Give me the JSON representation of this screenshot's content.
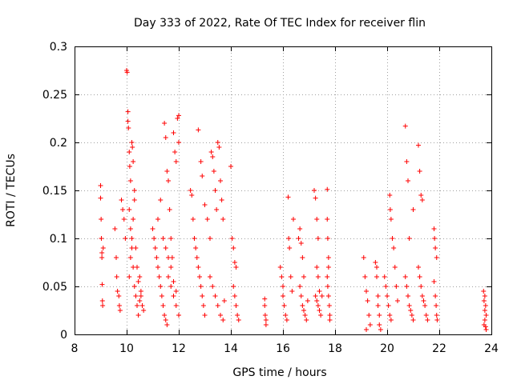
{
  "chart_data": {
    "type": "scatter",
    "title": "Day 333 of 2022, Rate Of TEC Index for receiver flin",
    "xlabel": "GPS time / hours",
    "ylabel": "ROTI / TECUs",
    "xlim": [
      8,
      24
    ],
    "ylim": [
      0,
      0.3
    ],
    "xticks": [
      "8",
      "10",
      "12",
      "14",
      "16",
      "18",
      "20",
      "22",
      "24"
    ],
    "yticks": [
      "0",
      "0.05",
      "0.1",
      "0.15",
      "0.2",
      "0.25",
      "0.3"
    ],
    "grid": true,
    "marker": "+",
    "color": "#ff0000",
    "series": [
      {
        "points": [
          [
            9.0,
            0.155
          ],
          [
            9.0,
            0.142
          ],
          [
            9.02,
            0.12
          ],
          [
            9.03,
            0.1
          ],
          [
            9.05,
            0.085
          ],
          [
            9.05,
            0.08
          ],
          [
            9.06,
            0.052
          ],
          [
            9.07,
            0.035
          ],
          [
            9.08,
            0.03
          ],
          [
            9.1,
            0.09
          ],
          [
            9.55,
            0.11
          ],
          [
            9.6,
            0.08
          ],
          [
            9.62,
            0.06
          ],
          [
            9.65,
            0.045
          ],
          [
            9.7,
            0.04
          ],
          [
            9.72,
            0.03
          ],
          [
            9.75,
            0.025
          ],
          [
            9.8,
            0.14
          ],
          [
            9.85,
            0.13
          ],
          [
            9.9,
            0.12
          ],
          [
            9.95,
            0.1
          ],
          [
            10.0,
            0.275
          ],
          [
            10.02,
            0.273
          ],
          [
            10.05,
            0.232
          ],
          [
            10.05,
            0.222
          ],
          [
            10.07,
            0.215
          ],
          [
            10.1,
            0.19
          ],
          [
            10.12,
            0.175
          ],
          [
            10.15,
            0.16
          ],
          [
            10.2,
            0.2
          ],
          [
            10.22,
            0.195
          ],
          [
            10.25,
            0.18
          ],
          [
            10.3,
            0.15
          ],
          [
            10.1,
            0.13
          ],
          [
            10.15,
            0.11
          ],
          [
            10.2,
            0.09
          ],
          [
            10.25,
            0.07
          ],
          [
            10.3,
            0.05
          ],
          [
            10.35,
            0.04
          ],
          [
            10.4,
            0.03
          ],
          [
            10.45,
            0.02
          ],
          [
            10.5,
            0.035
          ],
          [
            10.55,
            0.045
          ],
          [
            10.6,
            0.03
          ],
          [
            10.65,
            0.025
          ],
          [
            10.1,
            0.06
          ],
          [
            10.15,
            0.08
          ],
          [
            10.2,
            0.1
          ],
          [
            10.25,
            0.12
          ],
          [
            10.3,
            0.14
          ],
          [
            10.35,
            0.09
          ],
          [
            10.4,
            0.07
          ],
          [
            10.45,
            0.055
          ],
          [
            10.5,
            0.06
          ],
          [
            10.55,
            0.04
          ],
          [
            11.0,
            0.11
          ],
          [
            11.05,
            0.1
          ],
          [
            11.1,
            0.09
          ],
          [
            11.15,
            0.08
          ],
          [
            11.2,
            0.07
          ],
          [
            11.25,
            0.06
          ],
          [
            11.3,
            0.05
          ],
          [
            11.35,
            0.04
          ],
          [
            11.4,
            0.03
          ],
          [
            11.45,
            0.02
          ],
          [
            11.5,
            0.015
          ],
          [
            11.55,
            0.01
          ],
          [
            11.2,
            0.12
          ],
          [
            11.3,
            0.14
          ],
          [
            11.45,
            0.22
          ],
          [
            11.5,
            0.205
          ],
          [
            11.55,
            0.17
          ],
          [
            11.6,
            0.16
          ],
          [
            11.65,
            0.13
          ],
          [
            11.7,
            0.1
          ],
          [
            11.75,
            0.08
          ],
          [
            11.8,
            0.21
          ],
          [
            11.85,
            0.19
          ],
          [
            11.9,
            0.18
          ],
          [
            11.95,
            0.225
          ],
          [
            12.0,
            0.228
          ],
          [
            12.0,
            0.2
          ],
          [
            11.6,
            0.06
          ],
          [
            11.7,
            0.05
          ],
          [
            11.8,
            0.04
          ],
          [
            11.9,
            0.03
          ],
          [
            12.0,
            0.02
          ],
          [
            11.4,
            0.1
          ],
          [
            11.5,
            0.09
          ],
          [
            11.6,
            0.08
          ],
          [
            11.7,
            0.07
          ],
          [
            11.8,
            0.055
          ],
          [
            11.9,
            0.045
          ],
          [
            12.45,
            0.15
          ],
          [
            12.5,
            0.145
          ],
          [
            12.55,
            0.12
          ],
          [
            12.6,
            0.1
          ],
          [
            12.65,
            0.09
          ],
          [
            12.7,
            0.08
          ],
          [
            12.75,
            0.07
          ],
          [
            12.8,
            0.06
          ],
          [
            12.85,
            0.05
          ],
          [
            12.9,
            0.04
          ],
          [
            12.95,
            0.03
          ],
          [
            13.0,
            0.02
          ],
          [
            12.75,
            0.213
          ],
          [
            12.85,
            0.18
          ],
          [
            12.9,
            0.165
          ],
          [
            13.0,
            0.135
          ],
          [
            13.1,
            0.12
          ],
          [
            13.2,
            0.1
          ],
          [
            13.25,
            0.19
          ],
          [
            13.3,
            0.185
          ],
          [
            13.35,
            0.17
          ],
          [
            13.4,
            0.15
          ],
          [
            13.45,
            0.13
          ],
          [
            13.5,
            0.2
          ],
          [
            13.55,
            0.195
          ],
          [
            13.6,
            0.16
          ],
          [
            13.65,
            0.14
          ],
          [
            13.7,
            0.12
          ],
          [
            13.2,
            0.06
          ],
          [
            13.3,
            0.05
          ],
          [
            13.4,
            0.04
          ],
          [
            13.5,
            0.03
          ],
          [
            13.6,
            0.02
          ],
          [
            13.7,
            0.015
          ],
          [
            13.75,
            0.035
          ],
          [
            14.0,
            0.175
          ],
          [
            14.05,
            0.1
          ],
          [
            14.1,
            0.09
          ],
          [
            14.15,
            0.075
          ],
          [
            14.2,
            0.07
          ],
          [
            14.1,
            0.05
          ],
          [
            14.15,
            0.04
          ],
          [
            14.2,
            0.03
          ],
          [
            14.25,
            0.02
          ],
          [
            14.3,
            0.015
          ],
          [
            15.3,
            0.037
          ],
          [
            15.3,
            0.03
          ],
          [
            15.32,
            0.02
          ],
          [
            15.35,
            0.015
          ],
          [
            15.35,
            0.01
          ],
          [
            15.9,
            0.07
          ],
          [
            15.95,
            0.06
          ],
          [
            16.0,
            0.05
          ],
          [
            16.0,
            0.04
          ],
          [
            16.05,
            0.03
          ],
          [
            16.1,
            0.02
          ],
          [
            16.15,
            0.015
          ],
          [
            16.2,
            0.143
          ],
          [
            16.22,
            0.1
          ],
          [
            16.25,
            0.09
          ],
          [
            16.3,
            0.06
          ],
          [
            16.35,
            0.045
          ],
          [
            16.4,
            0.12
          ],
          [
            16.6,
            0.1
          ],
          [
            16.65,
            0.11
          ],
          [
            16.7,
            0.095
          ],
          [
            16.75,
            0.08
          ],
          [
            16.8,
            0.06
          ],
          [
            16.65,
            0.05
          ],
          [
            16.7,
            0.04
          ],
          [
            16.75,
            0.03
          ],
          [
            16.8,
            0.025
          ],
          [
            16.85,
            0.02
          ],
          [
            16.9,
            0.015
          ],
          [
            16.95,
            0.035
          ],
          [
            17.2,
            0.15
          ],
          [
            17.25,
            0.142
          ],
          [
            17.3,
            0.12
          ],
          [
            17.35,
            0.1
          ],
          [
            17.3,
            0.07
          ],
          [
            17.35,
            0.06
          ],
          [
            17.4,
            0.045
          ],
          [
            17.25,
            0.04
          ],
          [
            17.3,
            0.035
          ],
          [
            17.35,
            0.03
          ],
          [
            17.4,
            0.025
          ],
          [
            17.45,
            0.02
          ],
          [
            17.5,
            0.04
          ],
          [
            17.7,
            0.151
          ],
          [
            17.7,
            0.12
          ],
          [
            17.72,
            0.1
          ],
          [
            17.75,
            0.08
          ],
          [
            17.75,
            0.07
          ],
          [
            17.7,
            0.06
          ],
          [
            17.72,
            0.05
          ],
          [
            17.75,
            0.04
          ],
          [
            17.78,
            0.03
          ],
          [
            17.8,
            0.02
          ],
          [
            17.8,
            0.015
          ],
          [
            19.1,
            0.08
          ],
          [
            19.15,
            0.06
          ],
          [
            19.2,
            0.045
          ],
          [
            19.25,
            0.035
          ],
          [
            19.3,
            0.02
          ],
          [
            19.35,
            0.01
          ],
          [
            19.2,
            0.005
          ],
          [
            19.55,
            0.075
          ],
          [
            19.6,
            0.07
          ],
          [
            19.6,
            0.06
          ],
          [
            19.65,
            0.04
          ],
          [
            19.65,
            0.03
          ],
          [
            19.7,
            0.02
          ],
          [
            19.7,
            0.01
          ],
          [
            19.75,
            0.005
          ],
          [
            19.9,
            0.06
          ],
          [
            19.95,
            0.05
          ],
          [
            20.0,
            0.04
          ],
          [
            20.05,
            0.03
          ],
          [
            20.1,
            0.02
          ],
          [
            20.15,
            0.015
          ],
          [
            20.1,
            0.145
          ],
          [
            20.12,
            0.13
          ],
          [
            20.15,
            0.12
          ],
          [
            20.2,
            0.1
          ],
          [
            20.25,
            0.09
          ],
          [
            20.3,
            0.07
          ],
          [
            20.35,
            0.05
          ],
          [
            20.4,
            0.035
          ],
          [
            20.7,
            0.217
          ],
          [
            20.75,
            0.18
          ],
          [
            20.8,
            0.16
          ],
          [
            20.85,
            0.1
          ],
          [
            20.7,
            0.06
          ],
          [
            20.75,
            0.05
          ],
          [
            20.8,
            0.04
          ],
          [
            20.85,
            0.03
          ],
          [
            20.9,
            0.025
          ],
          [
            20.95,
            0.02
          ],
          [
            21.0,
            0.015
          ],
          [
            21.0,
            0.13
          ],
          [
            21.2,
            0.197
          ],
          [
            21.25,
            0.17
          ],
          [
            21.3,
            0.145
          ],
          [
            21.35,
            0.14
          ],
          [
            21.2,
            0.07
          ],
          [
            21.25,
            0.06
          ],
          [
            21.3,
            0.05
          ],
          [
            21.35,
            0.04
          ],
          [
            21.4,
            0.035
          ],
          [
            21.45,
            0.03
          ],
          [
            21.5,
            0.02
          ],
          [
            21.55,
            0.015
          ],
          [
            21.8,
            0.11
          ],
          [
            21.82,
            0.1
          ],
          [
            21.85,
            0.09
          ],
          [
            21.9,
            0.08
          ],
          [
            21.8,
            0.055
          ],
          [
            21.85,
            0.04
          ],
          [
            21.88,
            0.03
          ],
          [
            21.9,
            0.02
          ],
          [
            21.92,
            0.015
          ],
          [
            23.7,
            0.045
          ],
          [
            23.75,
            0.04
          ],
          [
            23.72,
            0.035
          ],
          [
            23.78,
            0.03
          ],
          [
            23.75,
            0.025
          ],
          [
            23.8,
            0.02
          ],
          [
            23.75,
            0.015
          ],
          [
            23.72,
            0.01
          ],
          [
            23.78,
            0.008
          ],
          [
            23.8,
            0.005
          ]
        ]
      }
    ]
  }
}
